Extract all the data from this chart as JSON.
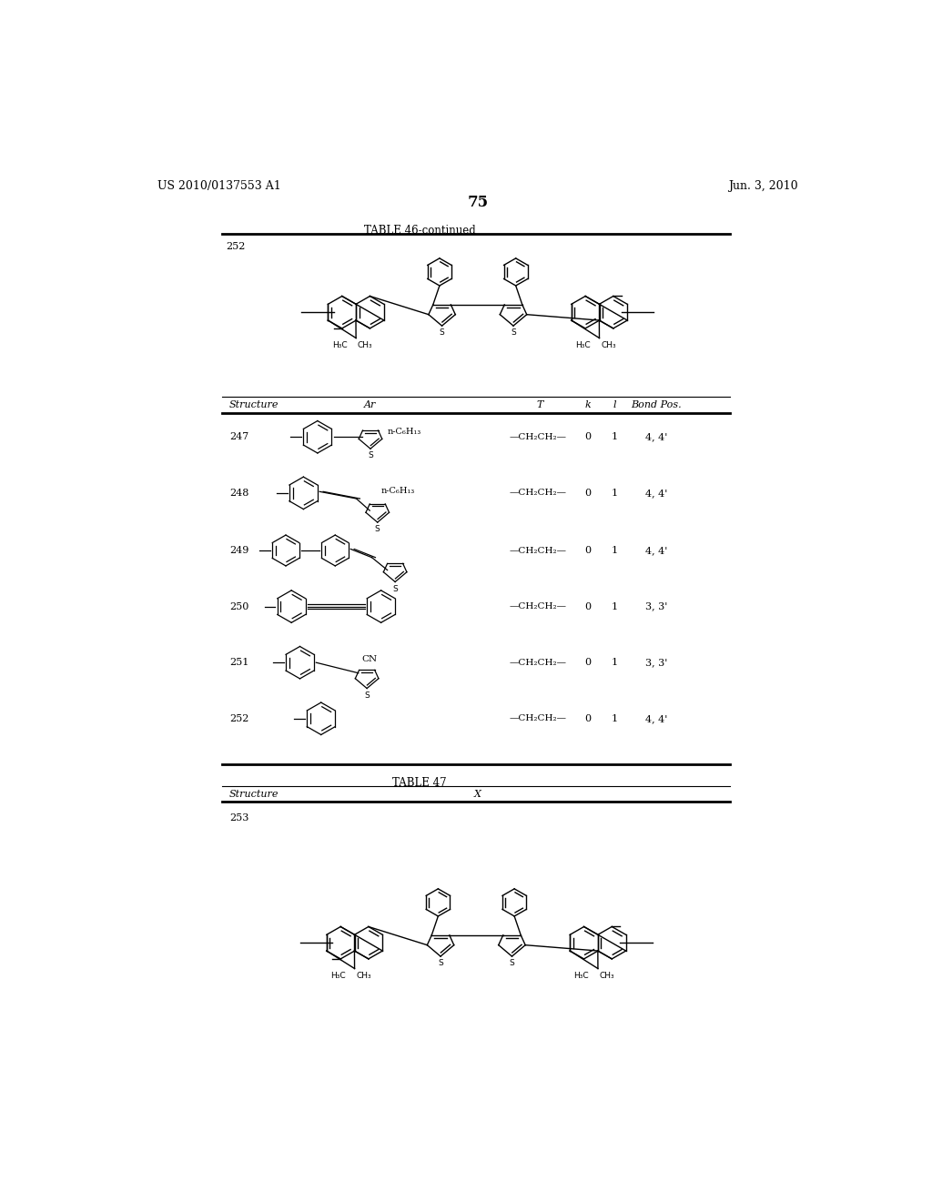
{
  "background_color": "#ffffff",
  "page_number": "75",
  "header_left": "US 2010/0137553 A1",
  "header_right": "Jun. 3, 2010",
  "table46_title": "TABLE 46-continued",
  "table47_title": "TABLE 47",
  "t_col_text": "—CH₂CH₂—",
  "rows": [
    {
      "num": "247",
      "k": "0",
      "l": "1",
      "bond": "4, 4'"
    },
    {
      "num": "248",
      "k": "0",
      "l": "1",
      "bond": "4, 4'"
    },
    {
      "num": "249",
      "k": "0",
      "l": "1",
      "bond": "4, 4'"
    },
    {
      "num": "250",
      "k": "0",
      "l": "1",
      "bond": "3, 3'"
    },
    {
      "num": "251",
      "k": "0",
      "l": "1",
      "bond": "3, 3'"
    },
    {
      "num": "252",
      "k": "0",
      "l": "1",
      "bond": "4, 4'"
    }
  ]
}
